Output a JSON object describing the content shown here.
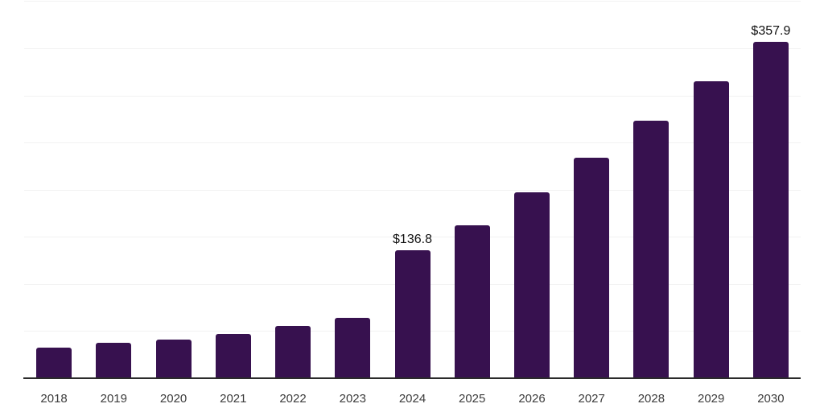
{
  "chart_data": {
    "type": "bar",
    "title": "",
    "xlabel": "",
    "ylabel": "",
    "categories": [
      "2018",
      "2019",
      "2020",
      "2021",
      "2022",
      "2023",
      "2024",
      "2025",
      "2026",
      "2027",
      "2028",
      "2029",
      "2030"
    ],
    "values": [
      33.5,
      38.4,
      42.1,
      47.6,
      56.1,
      65.0,
      136.8,
      163.0,
      198.0,
      235.0,
      274.0,
      315.5,
      357.9
    ],
    "data_labels": [
      null,
      null,
      null,
      null,
      null,
      null,
      "$136.8",
      null,
      null,
      null,
      null,
      null,
      "$357.9"
    ],
    "ylim": [
      0,
      400
    ],
    "grid_step": 50,
    "grid": true,
    "legend": false,
    "y_axis_labels_visible": false,
    "colors": {
      "bar": "#37114F",
      "axis_line": "#2B2B2B",
      "gridline": "#F2F2F2",
      "tick_label": "#3C3C3C",
      "data_label": "#111111",
      "background": "#FFFFFF"
    }
  }
}
